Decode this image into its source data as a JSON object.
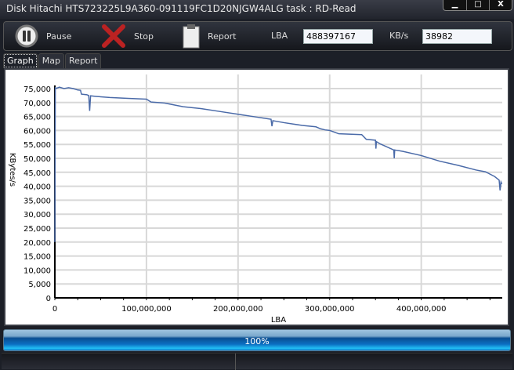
{
  "window": {
    "title": "Disk Hitachi HTS723225L9A360-091119FC1D20NJGW4ALG    task : RD-Read",
    "minimize": "▁",
    "maximize": "□",
    "close": "X"
  },
  "toolbar": {
    "pause_label": "Pause",
    "stop_label": "Stop",
    "report_label": "Report",
    "lba_label": "LBA",
    "lba_value": "488397167",
    "speed_label": "KB/s",
    "speed_value": "38982"
  },
  "tabs": [
    {
      "label": "Graph",
      "active": true
    },
    {
      "label": "Map"
    },
    {
      "label": "Report"
    }
  ],
  "progress": {
    "percent": 100,
    "label": "100%"
  },
  "chart_data": {
    "type": "line",
    "xlabel": "LBA",
    "ylabel": "KBytes/s",
    "xlim": [
      0,
      488397167
    ],
    "ylim": [
      0,
      75000
    ],
    "xticks": [
      "0",
      "100,000,000",
      "200,000,000",
      "300,000,000",
      "400,000,000"
    ],
    "xtick_values": [
      0,
      100000000,
      200000000,
      300000000,
      400000000
    ],
    "yticks": [
      "0",
      "5,000",
      "10,000",
      "15,000",
      "20,000",
      "25,000",
      "30,000",
      "35,000",
      "40,000",
      "45,000",
      "50,000",
      "55,000",
      "60,000",
      "65,000",
      "70,000",
      "75,000"
    ],
    "grid": true,
    "line_color": "#4a6aa8",
    "series": [
      {
        "x": [
          0,
          0.5,
          1,
          5,
          10,
          15,
          20,
          25,
          28,
          29,
          35,
          37,
          38,
          39,
          45,
          60,
          80,
          100,
          105,
          120,
          140,
          160,
          180,
          200,
          220,
          236,
          237,
          238,
          250,
          270,
          285,
          290,
          295,
          300,
          310,
          335,
          340,
          350,
          350.5,
          351,
          355,
          370,
          370.5,
          371,
          380,
          400,
          420,
          440,
          460,
          470,
          480,
          485,
          486,
          487,
          488
        ],
        "y": [
          20000,
          75500,
          75000,
          75500,
          75000,
          75300,
          75000,
          74500,
          74400,
          73000,
          72800,
          72500,
          67000,
          72400,
          72200,
          71800,
          71500,
          71200,
          70200,
          69800,
          68500,
          67800,
          66800,
          65800,
          64800,
          64000,
          61500,
          63500,
          62800,
          61800,
          61300,
          60600,
          60200,
          60000,
          58800,
          58500,
          56800,
          56500,
          53500,
          56000,
          55200,
          53000,
          50000,
          53000,
          52500,
          51000,
          49000,
          47500,
          45800,
          45200,
          43500,
          42200,
          38500,
          41500,
          40800
        ]
      }
    ]
  }
}
